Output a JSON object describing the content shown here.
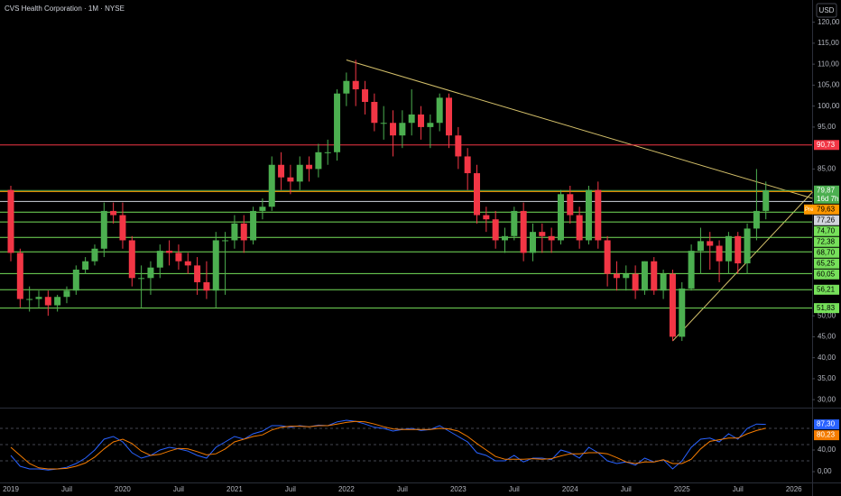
{
  "chart_data": [
    {
      "type": "candlestick",
      "title": "CVS Health Corporation · 1M · NYSE",
      "currency": "USD",
      "categories": [
        "2019",
        null,
        null,
        null,
        null,
        null,
        "Juil",
        null,
        null,
        null,
        null,
        null,
        "2020",
        null,
        null,
        null,
        null,
        null,
        "Juil",
        null,
        null,
        null,
        null,
        null,
        "2021",
        null,
        null,
        null,
        null,
        null,
        "Juil",
        null,
        null,
        null,
        null,
        null,
        "2022",
        null,
        null,
        null,
        null,
        null,
        "Juil",
        null,
        null,
        null,
        null,
        null,
        "2023",
        null,
        null,
        null,
        null,
        null,
        "Juil",
        null,
        null,
        null,
        null,
        null,
        "2024",
        null,
        null,
        null,
        null,
        null,
        "Juil",
        null,
        null,
        null,
        null,
        null,
        "2025",
        null,
        null,
        null,
        null,
        null,
        "Juil",
        null,
        null,
        null,
        null,
        null,
        "2026"
      ],
      "open": [
        80,
        65,
        54,
        54,
        54.5,
        52.5,
        54.5,
        56,
        61,
        63,
        66,
        75,
        74,
        68,
        59,
        59,
        61.5,
        65.5,
        65,
        63,
        62,
        58,
        56,
        68,
        68,
        72,
        68,
        75,
        76,
        86,
        83,
        82,
        86,
        85,
        89,
        89,
        103,
        106,
        104,
        101,
        96,
        96,
        93,
        96,
        98,
        95,
        96,
        102,
        93,
        88,
        84,
        74,
        73,
        68,
        69,
        75,
        65,
        70,
        69,
        68,
        79,
        74,
        68,
        80,
        68,
        60,
        59,
        60,
        56,
        63,
        56,
        60,
        45,
        56.5,
        65.5,
        67.8,
        66.7,
        63,
        69,
        62.5,
        70.8,
        75,
        null,
        null,
        null
      ],
      "high": [
        81,
        66,
        57,
        56,
        56,
        55,
        57,
        62,
        64,
        67,
        77,
        77,
        77,
        69,
        62,
        63,
        67,
        68,
        67,
        65,
        64,
        63,
        70,
        70,
        74,
        74,
        76,
        78,
        88,
        89,
        86,
        88,
        88,
        91,
        92,
        104,
        108,
        111,
        106,
        103,
        100,
        99,
        99,
        104,
        100,
        98,
        103,
        103,
        95,
        90,
        86,
        76,
        75,
        71,
        76,
        77,
        72,
        72,
        71,
        80,
        81,
        76,
        81,
        82,
        69,
        63,
        62,
        62,
        63,
        64,
        61,
        61,
        58,
        67,
        71,
        70,
        68,
        70,
        70,
        72,
        85,
        82,
        null,
        null,
        null
      ],
      "low": [
        63,
        52,
        51,
        52,
        50,
        51,
        53,
        55,
        60,
        62,
        64,
        72,
        66,
        57,
        52,
        55,
        59,
        62,
        61,
        60,
        55,
        54,
        52,
        55,
        66,
        65,
        67,
        73,
        75,
        80,
        79,
        80,
        82,
        83,
        86,
        87,
        100,
        100,
        98,
        94,
        92,
        88,
        90,
        93,
        92,
        90,
        94,
        90,
        85,
        80,
        72,
        70,
        66,
        65,
        68,
        63,
        63,
        65,
        65,
        67,
        72,
        66,
        67,
        66,
        57,
        56,
        56,
        54,
        55,
        55,
        54,
        44,
        44,
        56,
        60,
        61,
        58,
        60,
        60,
        60,
        68,
        73,
        null,
        null,
        null
      ],
      "close": [
        65,
        54,
        54,
        54.5,
        52.5,
        54.5,
        56,
        61,
        63,
        66,
        75,
        74,
        68,
        59,
        59,
        61.5,
        65.5,
        65,
        63,
        62,
        58,
        56,
        68,
        68,
        72,
        68,
        75,
        76,
        86,
        83,
        82,
        86,
        85,
        89,
        89,
        103,
        106,
        104,
        101,
        96,
        96,
        93,
        96,
        98,
        95,
        96,
        102,
        93,
        88,
        84,
        74,
        73,
        68,
        69,
        75,
        65,
        70,
        69,
        68,
        79,
        74,
        68,
        80,
        68,
        60,
        59,
        60,
        56,
        63,
        56,
        60,
        45,
        56.5,
        65.5,
        67.8,
        66.7,
        63,
        69,
        62.5,
        70.8,
        75,
        79.87,
        null,
        null,
        null
      ],
      "up_color": "#4caf50",
      "down_color": "#f23645",
      "ylim": [
        28.1,
        125.3
      ],
      "yticks": [
        {
          "value": 120,
          "label": "120,00"
        },
        {
          "value": 115,
          "label": "115,00"
        },
        {
          "value": 110,
          "label": "110,00"
        },
        {
          "value": 105,
          "label": "105,00"
        },
        {
          "value": 100,
          "label": "100,00"
        },
        {
          "value": 95,
          "label": "95,00"
        },
        {
          "value": 85,
          "label": "85,00"
        },
        {
          "value": 50,
          "label": "50,00"
        },
        {
          "value": 45,
          "label": "45,00"
        },
        {
          "value": 40,
          "label": "40,00"
        },
        {
          "value": 35,
          "label": "35,00"
        },
        {
          "value": 30,
          "label": "30,00"
        }
      ],
      "levels": [
        {
          "value": 90.73,
          "label": "90,73",
          "color": "#f23645"
        },
        {
          "value": 79.87,
          "label": "79,87",
          "color": "#4caf50",
          "note": "16d 7h"
        },
        {
          "value": 79.63,
          "label": "79,63",
          "color": "#ff9800",
          "tag": "Pre"
        },
        {
          "value": 77.26,
          "label": "77,26",
          "color": "#d1d4dc"
        },
        {
          "value": 74.7,
          "label": "74,70",
          "color": "#76e05a"
        },
        {
          "value": 72.38,
          "label": "72,38",
          "color": "#76e05a"
        },
        {
          "value": 68.7,
          "label": "68,70",
          "color": "#76e05a"
        },
        {
          "value": 65.25,
          "label": "65,25",
          "color": "#76e05a"
        },
        {
          "value": 60.05,
          "label": "60,05",
          "color": "#76e05a"
        },
        {
          "value": 56.21,
          "label": "56,21",
          "color": "#76e05a"
        },
        {
          "value": 51.83,
          "label": "51,83",
          "color": "#76e05a"
        }
      ],
      "trendlines": [
        {
          "x": [
            36,
            86
          ],
          "y": [
            111,
            78
          ],
          "color": "#d4c06a"
        },
        {
          "x": [
            71,
            86
          ],
          "y": [
            44,
            79.5
          ],
          "color": "#d4c06a"
        }
      ]
    },
    {
      "type": "line",
      "series": [
        {
          "color": "#2962ff",
          "last_label": "87,30",
          "values": [
            30,
            10,
            5,
            5,
            3,
            5,
            8,
            15,
            25,
            40,
            60,
            65,
            55,
            35,
            25,
            30,
            40,
            45,
            42,
            38,
            30,
            25,
            45,
            55,
            65,
            60,
            70,
            75,
            85,
            85,
            82,
            85,
            83,
            86,
            85,
            92,
            95,
            93,
            88,
            82,
            80,
            75,
            78,
            80,
            76,
            78,
            85,
            75,
            65,
            55,
            35,
            30,
            20,
            20,
            30,
            18,
            25,
            25,
            22,
            40,
            35,
            25,
            45,
            35,
            20,
            15,
            18,
            12,
            25,
            18,
            22,
            5,
            20,
            45,
            60,
            62,
            55,
            70,
            60,
            80,
            88,
            87.3
          ]
        },
        {
          "color": "#f57c00",
          "last_label": "80,23",
          "values": [
            45,
            30,
            15,
            7,
            5,
            5,
            6,
            10,
            16,
            27,
            42,
            55,
            60,
            52,
            38,
            30,
            32,
            38,
            43,
            42,
            37,
            31,
            33,
            42,
            55,
            60,
            65,
            68,
            77,
            82,
            84,
            84,
            83,
            85,
            85,
            88,
            91,
            93,
            92,
            88,
            83,
            79,
            78,
            78,
            78,
            78,
            80,
            79,
            75,
            65,
            52,
            40,
            28,
            23,
            23,
            23,
            24,
            23,
            24,
            29,
            33,
            33,
            35,
            35,
            33,
            26,
            18,
            15,
            18,
            18,
            22,
            15,
            15,
            23,
            42,
            56,
            59,
            62,
            62,
            70,
            76,
            80.23
          ]
        }
      ],
      "ylim": [
        -28.3,
        113.3
      ],
      "yticks": [
        {
          "value": 40,
          "label": "40,00"
        },
        {
          "value": 0,
          "label": "0,00"
        }
      ],
      "guides": [
        80,
        50,
        20
      ]
    }
  ]
}
